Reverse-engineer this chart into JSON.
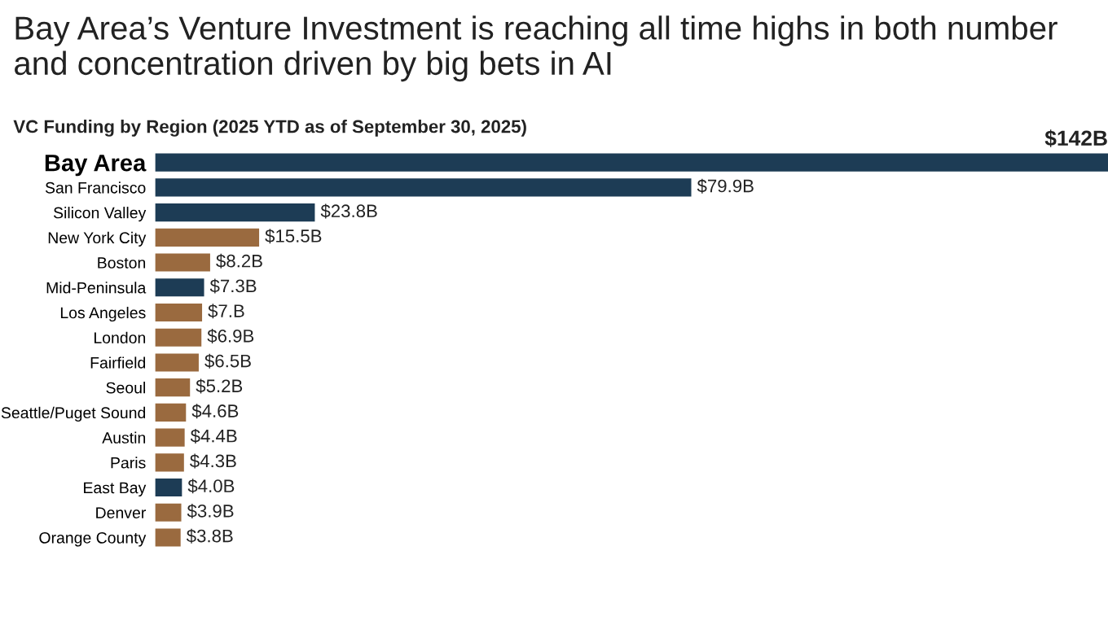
{
  "chart_data": {
    "type": "bar",
    "orientation": "horizontal",
    "title": "Bay Area’s Venture Investment is reaching all time highs in both number and concentration driven by big bets in AI",
    "subtitle": "VC Funding by Region (2025 YTD as of September 30, 2025)",
    "categories": [
      "Bay Area",
      "San Francisco",
      "Silicon Valley",
      "New York City",
      "Boston",
      "Mid-Peninsula",
      "Los Angeles",
      "London",
      "Fairfield",
      "Seoul",
      "Seattle/Puget Sound",
      "Austin",
      "Paris",
      "East Bay",
      "Denver",
      "Orange County"
    ],
    "values": [
      142,
      79.9,
      23.8,
      15.5,
      8.2,
      7.3,
      7,
      6.9,
      6.5,
      5.2,
      4.6,
      4.4,
      4.3,
      4.0,
      3.9,
      3.8
    ],
    "value_labels": [
      "$142B",
      "$79.9B",
      "$23.8B",
      "$15.5B",
      "$8.2B",
      "$7.3B",
      "$7.B",
      "$6.9B",
      "$6.5B",
      "$5.2B",
      "$4.6B",
      "$4.4B",
      "$4.3B",
      "$4.0B",
      "$3.9B",
      "$3.8B"
    ],
    "colors": [
      "#1d3c55",
      "#1d3c55",
      "#1d3c55",
      "#9a6a3f",
      "#9a6a3f",
      "#1d3c55",
      "#9a6a3f",
      "#9a6a3f",
      "#9a6a3f",
      "#9a6a3f",
      "#9a6a3f",
      "#9a6a3f",
      "#9a6a3f",
      "#1d3c55",
      "#9a6a3f",
      "#9a6a3f"
    ],
    "grid": false,
    "legend": false
  }
}
